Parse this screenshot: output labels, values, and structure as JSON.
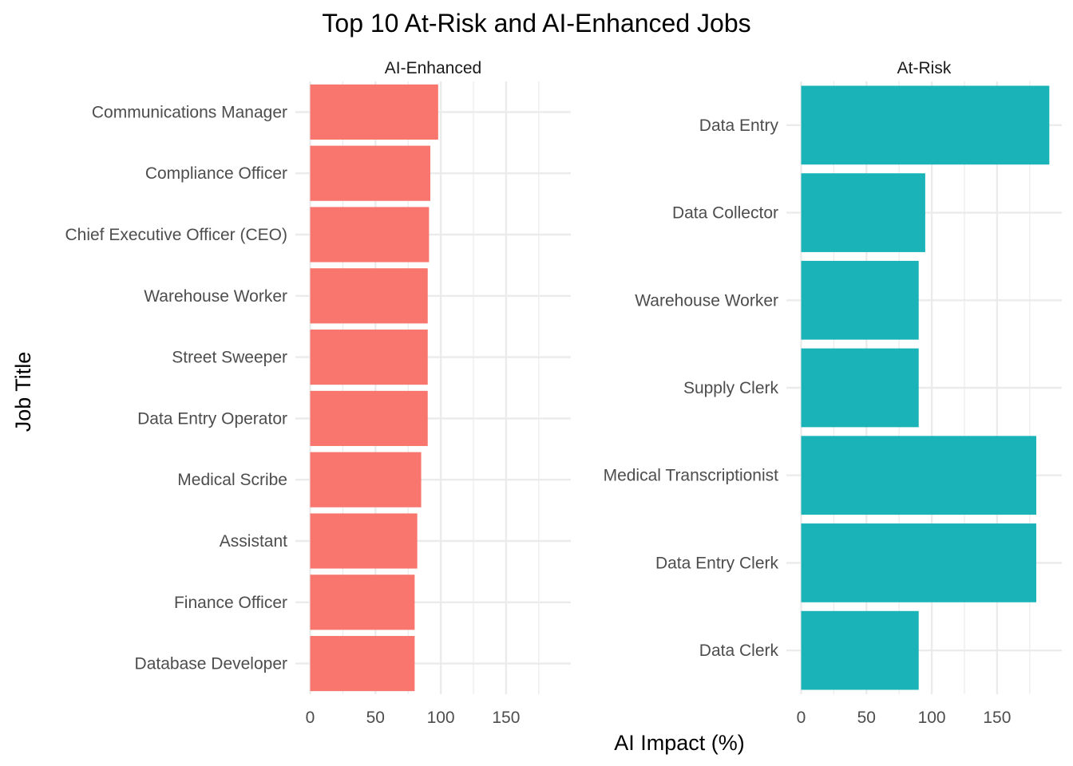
{
  "chart_data": {
    "type": "bar",
    "orientation": "horizontal",
    "title": "Top 10 At-Risk and AI-Enhanced Jobs",
    "xlabel": "AI Impact (%)",
    "ylabel": "Job Title",
    "xlim": [
      0,
      195
    ],
    "x_ticks": [
      "0",
      "50",
      "100",
      "150"
    ],
    "grid": true,
    "legend": "none",
    "panels": [
      {
        "name": "AI-Enhanced",
        "color": "#F8766D",
        "categories": [
          "Communications Manager",
          "Compliance Officer",
          "Chief Executive Officer (CEO)",
          "Warehouse Worker",
          "Street Sweeper",
          "Data Entry Operator",
          "Medical Scribe",
          "Assistant",
          "Finance Officer",
          "Database Developer"
        ],
        "values": [
          98,
          92,
          91,
          90,
          90,
          90,
          85,
          82,
          80,
          80
        ]
      },
      {
        "name": "At-Risk",
        "color": "#1AB4B8",
        "categories": [
          "Data Entry",
          "Data Collector",
          "Warehouse Worker",
          "Supply Clerk",
          "Medical Transcriptionist",
          "Data Entry Clerk",
          "Data Clerk"
        ],
        "values": [
          190,
          95,
          90,
          90,
          180,
          180,
          90
        ]
      }
    ]
  }
}
